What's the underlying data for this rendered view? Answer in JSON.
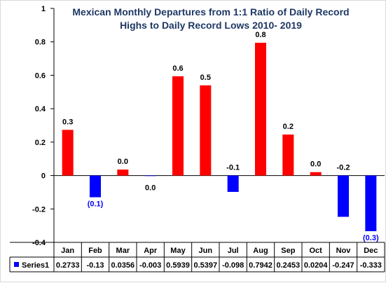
{
  "chart_data": {
    "type": "bar",
    "title_lines": [
      "Mexican Monthly Departures from 1:1 Ratio of Daily Record",
      "Highs to Daily Record Lows 2010- 2019"
    ],
    "categories": [
      "Jan",
      "Feb",
      "Mar",
      "Apr",
      "May",
      "Jun",
      "Jul",
      "Aug",
      "Sep",
      "Oct",
      "Nov",
      "Dec"
    ],
    "series": [
      {
        "name": "Series1",
        "values": [
          0.2733,
          -0.13,
          0.0356,
          -0.003,
          0.5939,
          0.5397,
          -0.098,
          0.7942,
          0.2453,
          0.0204,
          -0.247,
          -0.333
        ],
        "table_values": [
          "0.2733",
          "-0.13",
          "0.0356",
          "-0.003",
          "0.5939",
          "0.5397",
          "-0.098",
          "0.7942",
          "0.2453",
          "0.0204",
          "-0.247",
          "-0.333"
        ],
        "data_labels": [
          "0.3",
          "(0.1)",
          "0.0",
          "0.0",
          "0.6",
          "0.5",
          "-0.1",
          "0.8",
          "0.2",
          "0.0",
          "-0.2",
          "(0.3)"
        ]
      }
    ],
    "y_ticks": [
      "1",
      "0.8",
      "0.6",
      "0.4",
      "0.2",
      "0",
      "-0.2",
      "-0.4"
    ],
    "ylim": [
      -0.4,
      1
    ],
    "grid": false,
    "legend": "data-table",
    "colors": {
      "positive": "#ff0000",
      "negative": "#0000ff",
      "title": "#1f3864",
      "negative_label": "#0000ff",
      "axis": "#000000"
    }
  }
}
